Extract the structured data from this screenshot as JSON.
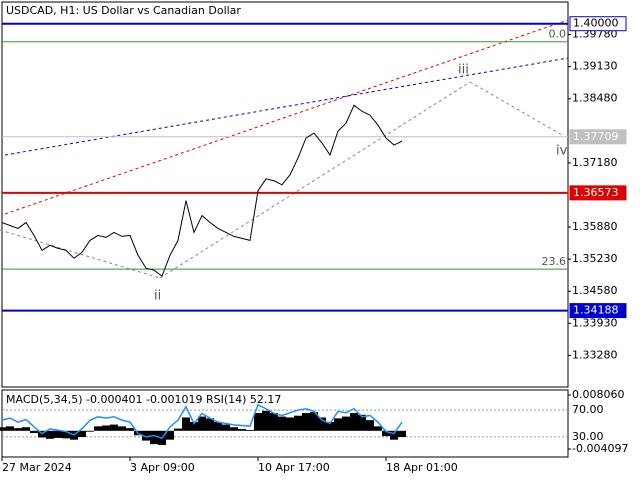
{
  "chart_data": [
    {
      "type": "line",
      "title": "USDCAD, H1:  US Dollar vs Canadian Dollar",
      "categories": [
        "27 Mar 2024",
        null,
        null,
        null,
        null,
        null,
        null,
        null,
        null,
        null,
        null,
        null,
        null,
        null,
        null,
        null,
        "3 Apr 09:00",
        null,
        null,
        null,
        null,
        null,
        null,
        null,
        null,
        null,
        null,
        null,
        null,
        null,
        null,
        null,
        "10 Apr 17:00",
        null,
        null,
        null,
        null,
        null,
        null,
        null,
        null,
        null,
        null,
        null,
        null,
        null,
        null,
        null,
        "18 Apr 01:00",
        null,
        null
      ],
      "values": [
        1.35972,
        1.35912,
        1.35852,
        1.35972,
        1.35711,
        1.35409,
        1.3551,
        1.35449,
        1.35409,
        1.35248,
        1.35369,
        1.3561,
        1.35711,
        1.35671,
        1.35771,
        1.35691,
        1.35711,
        1.35308,
        1.35047,
        1.35007,
        1.34886,
        1.35308,
        1.3561,
        1.36415,
        1.35771,
        1.36113,
        1.35972,
        1.35852,
        1.35771,
        1.35691,
        1.35651,
        1.3561,
        1.36616,
        1.36858,
        1.36818,
        1.36737,
        1.36939,
        1.37281,
        1.37683,
        1.37784,
        1.37583,
        1.37341,
        1.37824,
        1.37985,
        1.38347,
        1.38227,
        1.38146,
        1.37945,
        1.37683,
        1.37542,
        1.37623
      ],
      "color": "#000000",
      "ylim": [
        1.3264,
        1.4044
      ],
      "yticks": [
        {
          "value": 1.3978,
          "label": "1.39780"
        },
        {
          "value": 1.3913,
          "label": "1.39130"
        },
        {
          "value": 1.3848,
          "label": "1.38480"
        },
        {
          "value": 1.3718,
          "label": "1.37180"
        },
        {
          "value": 1.3588,
          "label": "1.35880"
        },
        {
          "value": 1.3523,
          "label": "1.35230"
        },
        {
          "value": 1.3458,
          "label": "1.34580"
        },
        {
          "value": 1.3393,
          "label": "1.33930"
        },
        {
          "value": 1.3328,
          "label": "1.33280"
        }
      ],
      "levels": [
        {
          "value": 1.4,
          "label": "1.40000",
          "color": "#0000cc"
        },
        {
          "value": 1.37709,
          "label": "1.37709",
          "color": "#c0c0c0"
        },
        {
          "value": 1.36573,
          "label": "1.36573",
          "color": "#e00000"
        },
        {
          "value": 1.34188,
          "label": "1.34188",
          "color": "#0000cc"
        }
      ],
      "fib_levels": [
        {
          "level": "0.0",
          "price": 1.39635
        },
        {
          "level": "23.6",
          "price": 1.35027
        }
      ],
      "fib_color": "#339933",
      "wave_labels": [
        "ii",
        "iii",
        "iv"
      ]
    },
    {
      "type": "macd",
      "title": "MACD(5,34,5) -0.000401 -0.001019 RSI(14) 52.17",
      "ylim": [
        -0.004097,
        0.00806
      ],
      "yticks": [
        {
          "value": 0.00806,
          "label": "0.008060"
        },
        {
          "value": -0.004097,
          "label": "-0.004097"
        }
      ],
      "y2lim": [
        0,
        100
      ],
      "y2ticks": [
        {
          "value": 70,
          "label": "70.00"
        },
        {
          "value": 30,
          "label": "30.00"
        }
      ],
      "series": [
        {
          "color": "#000000",
          "values": [
            0.0008,
            0.001,
            0.0006,
            0.0008,
            -0.0005,
            -0.0015,
            -0.0018,
            -0.0016,
            -0.0017,
            -0.002,
            -0.0014,
            -0.0002,
            0.001,
            0.0012,
            0.0014,
            0.001,
            0.0006,
            -0.001,
            -0.0022,
            -0.003,
            -0.0032,
            -0.002,
            0.0005,
            0.003,
            0.002,
            0.0032,
            0.0028,
            0.002,
            0.0014,
            0.0008,
            0.0004,
            0.0002,
            0.004,
            0.0045,
            0.004,
            0.0032,
            0.003,
            0.0034,
            0.004,
            0.0042,
            0.003,
            0.002,
            0.0028,
            0.0032,
            0.004,
            0.0036,
            0.0024,
            0.001,
            -0.0012,
            -0.002,
            -0.0014
          ]
        },
        {
          "color": "#1e90ff",
          "axis": "y2",
          "values": [
            55,
            58,
            52,
            56,
            45,
            35,
            42,
            40,
            38,
            33,
            42,
            55,
            60,
            58,
            60,
            55,
            52,
            35,
            30,
            32,
            28,
            45,
            55,
            75,
            50,
            65,
            58,
            52,
            50,
            48,
            47,
            46,
            78,
            72,
            65,
            62,
            66,
            70,
            72,
            68,
            55,
            50,
            68,
            66,
            72,
            60,
            62,
            52,
            38,
            35,
            52
          ]
        }
      ]
    }
  ]
}
